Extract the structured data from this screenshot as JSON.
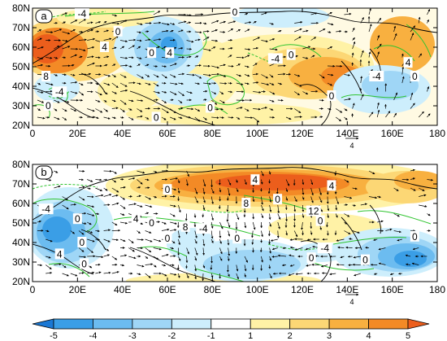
{
  "chart_data": [
    {
      "type": "heatmap",
      "panel_label": "a",
      "x_ticks": [
        "0",
        "20E",
        "40E",
        "60E",
        "80E",
        "100E",
        "120E",
        "140E",
        "160E",
        "180"
      ],
      "y_ticks": [
        "20N",
        "30N",
        "40N",
        "50N",
        "60N",
        "70N",
        "80N"
      ],
      "xlim": [
        0,
        180
      ],
      "ylim": [
        20,
        80
      ],
      "reference_vector_label": "4",
      "contour_labels": [
        {
          "text": "-4",
          "lon": 22,
          "lat": 77
        },
        {
          "text": "0",
          "lon": 90,
          "lat": 78
        },
        {
          "text": "0",
          "lon": 38,
          "lat": 68
        },
        {
          "text": "4",
          "lon": 32,
          "lat": 60
        },
        {
          "text": "0",
          "lon": 53,
          "lat": 57
        },
        {
          "text": "4",
          "lon": 61,
          "lat": 57
        },
        {
          "text": "-4",
          "lon": 108,
          "lat": 54
        },
        {
          "text": "0",
          "lon": 115,
          "lat": 56
        },
        {
          "text": "4",
          "lon": 167,
          "lat": 52
        },
        {
          "text": "8",
          "lon": 6,
          "lat": 45
        },
        {
          "text": "-4",
          "lon": 12,
          "lat": 37
        },
        {
          "text": "0",
          "lon": 7,
          "lat": 30
        },
        {
          "text": "0",
          "lon": 79,
          "lat": 29
        },
        {
          "text": "0",
          "lon": 55,
          "lat": 24
        },
        {
          "text": "0",
          "lon": 133,
          "lat": 35
        },
        {
          "text": "-4",
          "lon": 153,
          "lat": 45
        },
        {
          "text": "0",
          "lon": 170,
          "lat": 45
        }
      ]
    },
    {
      "type": "heatmap",
      "panel_label": "b",
      "x_ticks": [
        "0",
        "20E",
        "40E",
        "60E",
        "80E",
        "100E",
        "120E",
        "140E",
        "160E",
        "180"
      ],
      "y_ticks": [
        "20N",
        "30N",
        "40N",
        "50N",
        "60N",
        "70N",
        "80N"
      ],
      "xlim": [
        0,
        180
      ],
      "ylim": [
        20,
        80
      ],
      "reference_vector_label": "4",
      "contour_labels": [
        {
          "text": "0",
          "lon": 60,
          "lat": 67
        },
        {
          "text": "4",
          "lon": 99,
          "lat": 72
        },
        {
          "text": "4",
          "lon": 133,
          "lat": 69
        },
        {
          "text": "8",
          "lon": 95,
          "lat": 60
        },
        {
          "text": "0",
          "lon": 109,
          "lat": 62
        },
        {
          "text": "12",
          "lon": 125,
          "lat": 56
        },
        {
          "text": "0",
          "lon": 128,
          "lat": 51
        },
        {
          "text": "-4",
          "lon": 6,
          "lat": 57
        },
        {
          "text": "0",
          "lon": 20,
          "lat": 52
        },
        {
          "text": "4",
          "lon": 46,
          "lat": 52
        },
        {
          "text": "0",
          "lon": 53,
          "lat": 50
        },
        {
          "text": "-4",
          "lon": 76,
          "lat": 47
        },
        {
          "text": "8",
          "lon": 68,
          "lat": 48
        },
        {
          "text": "0",
          "lon": 91,
          "lat": 42
        },
        {
          "text": "0",
          "lon": 60,
          "lat": 42
        },
        {
          "text": "0",
          "lon": 22,
          "lat": 40
        },
        {
          "text": "4",
          "lon": 12,
          "lat": 34
        },
        {
          "text": "0",
          "lon": 23,
          "lat": 29
        },
        {
          "text": "-4",
          "lon": 130,
          "lat": 37
        },
        {
          "text": "0",
          "lon": 124,
          "lat": 32
        },
        {
          "text": "0",
          "lon": 148,
          "lat": 31
        },
        {
          "text": "0",
          "lon": 170,
          "lat": 43
        }
      ]
    }
  ],
  "colorbar": {
    "labels": [
      "-5",
      "-4",
      "-3",
      "-2",
      "-1",
      "1",
      "2",
      "3",
      "4",
      "5"
    ],
    "colors": [
      "#1a78d4",
      "#3a9ee6",
      "#6cbcf0",
      "#9fd6f6",
      "#cdeefc",
      "#ffffff",
      "#fff2a6",
      "#fcd775",
      "#f8b040",
      "#f38a26",
      "#ec5e1c"
    ]
  },
  "colors": {
    "contour": "#2fc42f",
    "vector": "#000000",
    "coast": "#000000"
  }
}
